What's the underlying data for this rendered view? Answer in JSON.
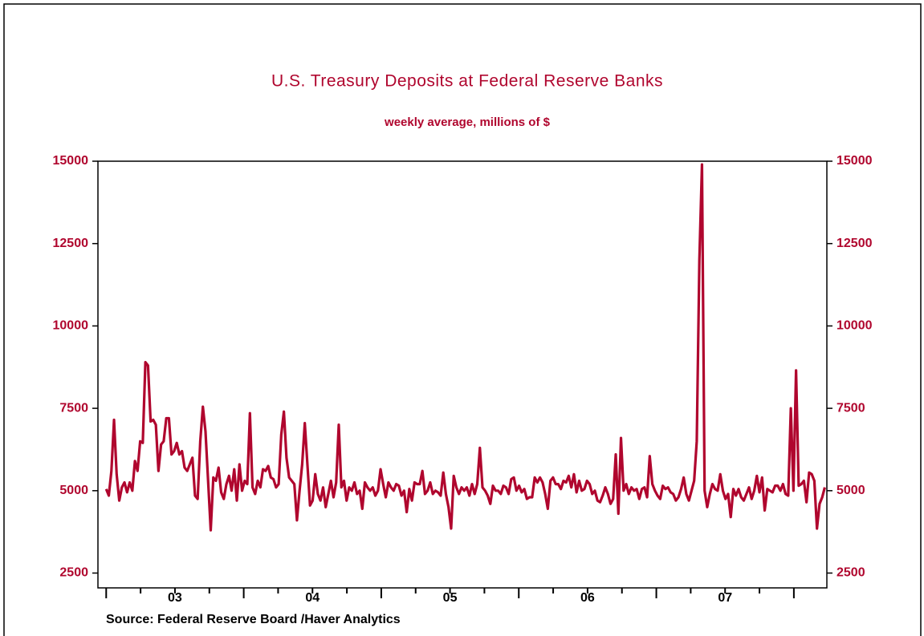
{
  "chart_data": {
    "type": "line",
    "title": "U.S. Treasury Deposits at Federal Reserve Banks",
    "subtitle": "weekly average, millions of $",
    "source": "Source:  Federal Reserve Board /Haver Analytics",
    "color": "#b0062e",
    "xlim": [
      2002.94,
      2008.24
    ],
    "ylim": [
      2050,
      15000
    ],
    "yticks": [
      2500,
      5000,
      7500,
      10000,
      12500,
      15000
    ],
    "xticks": [
      {
        "value": 2003.5,
        "label": "03"
      },
      {
        "value": 2004.5,
        "label": "04"
      },
      {
        "value": 2005.5,
        "label": "05"
      },
      {
        "value": 2006.5,
        "label": "06"
      },
      {
        "value": 2007.5,
        "label": "07"
      }
    ],
    "x": [
      2003,
      2003.019,
      2003.038,
      2003.057,
      2003.076,
      2003.095,
      2003.114,
      2003.133,
      2003.152,
      2003.171,
      2003.19,
      2003.209,
      2003.228,
      2003.247,
      2003.266,
      2003.285,
      2003.304,
      2003.323,
      2003.342,
      2003.361,
      2003.38,
      2003.399,
      2003.418,
      2003.437,
      2003.456,
      2003.475,
      2003.494,
      2003.513,
      2003.532,
      2003.551,
      2003.57,
      2003.589,
      2003.608,
      2003.627,
      2003.646,
      2003.665,
      2003.684,
      2003.703,
      2003.722,
      2003.741,
      2003.76,
      2003.779,
      2003.798,
      2003.817,
      2003.836,
      2003.855,
      2003.874,
      2003.893,
      2003.912,
      2003.931,
      2003.95,
      2003.969,
      2003.988,
      2004.007,
      2004.026,
      2004.045,
      2004.064,
      2004.083,
      2004.102,
      2004.121,
      2004.14,
      2004.159,
      2004.178,
      2004.197,
      2004.216,
      2004.235,
      2004.254,
      2004.273,
      2004.292,
      2004.311,
      2004.33,
      2004.349,
      2004.368,
      2004.387,
      2004.406,
      2004.425,
      2004.444,
      2004.463,
      2004.482,
      2004.501,
      2004.52,
      2004.539,
      2004.558,
      2004.577,
      2004.596,
      2004.615,
      2004.634,
      2004.653,
      2004.672,
      2004.691,
      2004.71,
      2004.729,
      2004.748,
      2004.767,
      2004.786,
      2004.805,
      2004.824,
      2004.843,
      2004.862,
      2004.881,
      2004.9,
      2004.919,
      2004.938,
      2004.957,
      2004.976,
      2004.995,
      2005.014,
      2005.033,
      2005.052,
      2005.071,
      2005.09,
      2005.109,
      2005.128,
      2005.147,
      2005.166,
      2005.185,
      2005.204,
      2005.223,
      2005.242,
      2005.261,
      2005.28,
      2005.299,
      2005.318,
      2005.337,
      2005.356,
      2005.375,
      2005.394,
      2005.413,
      2005.432,
      2005.451,
      2005.47,
      2005.489,
      2005.508,
      2005.527,
      2005.546,
      2005.565,
      2005.584,
      2005.603,
      2005.622,
      2005.641,
      2005.66,
      2005.679,
      2005.698,
      2005.717,
      2005.736,
      2005.755,
      2005.774,
      2005.793,
      2005.812,
      2005.831,
      2005.85,
      2005.869,
      2005.888,
      2005.907,
      2005.926,
      2005.945,
      2005.964,
      2005.983,
      2006.002,
      2006.021,
      2006.04,
      2006.059,
      2006.078,
      2006.097,
      2006.116,
      2006.135,
      2006.154,
      2006.173,
      2006.192,
      2006.211,
      2006.23,
      2006.249,
      2006.268,
      2006.287,
      2006.306,
      2006.325,
      2006.344,
      2006.363,
      2006.382,
      2006.401,
      2006.42,
      2006.439,
      2006.458,
      2006.477,
      2006.496,
      2006.515,
      2006.534,
      2006.553,
      2006.572,
      2006.591,
      2006.61,
      2006.629,
      2006.648,
      2006.667,
      2006.686,
      2006.705,
      2006.724,
      2006.743,
      2006.762,
      2006.781,
      2006.8,
      2006.819,
      2006.838,
      2006.857,
      2006.876,
      2006.895,
      2006.914,
      2006.933,
      2006.952,
      2006.971,
      2006.99,
      2007.009,
      2007.028,
      2007.047,
      2007.066,
      2007.085,
      2007.104,
      2007.123,
      2007.142,
      2007.161,
      2007.18,
      2007.199,
      2007.218,
      2007.237,
      2007.256,
      2007.275,
      2007.294,
      2007.313,
      2007.332,
      2007.351,
      2007.37,
      2007.389,
      2007.408,
      2007.427,
      2007.446,
      2007.465,
      2007.484,
      2007.503,
      2007.522,
      2007.541,
      2007.56,
      2007.579,
      2007.598,
      2007.617,
      2007.636,
      2007.655,
      2007.674,
      2007.693,
      2007.712,
      2007.731,
      2007.75,
      2007.769,
      2007.788,
      2007.807,
      2007.826,
      2007.845,
      2007.864,
      2007.883,
      2007.902,
      2007.921,
      2007.94,
      2007.959,
      2007.978,
      2007.997,
      2008.016,
      2008.035,
      2008.054,
      2008.073,
      2008.092,
      2008.111,
      2008.13,
      2008.149,
      2008.168,
      2008.187,
      2008.206,
      2008.225
    ],
    "values": [
      5050,
      4850,
      5600,
      7150,
      5500,
      4700,
      5100,
      5250,
      4950,
      5250,
      5000,
      5900,
      5600,
      6500,
      6450,
      8900,
      8800,
      7100,
      7150,
      7000,
      5600,
      6400,
      6500,
      7200,
      7200,
      6100,
      6200,
      6450,
      6100,
      6200,
      5700,
      5600,
      5800,
      6000,
      4850,
      4750,
      6500,
      7550,
      6800,
      5300,
      3800,
      5400,
      5300,
      5700,
      4950,
      4750,
      5200,
      5450,
      5000,
      5650,
      4700,
      5800,
      5000,
      5300,
      5200,
      7350,
      5100,
      4900,
      5300,
      5100,
      5650,
      5600,
      5750,
      5400,
      5350,
      5100,
      5200,
      6700,
      7400,
      6000,
      5400,
      5300,
      5200,
      4100,
      5000,
      5800,
      7050,
      5800,
      4550,
      4700,
      5500,
      4900,
      4700,
      5100,
      4500,
      4900,
      5300,
      4800,
      5250,
      7000,
      5100,
      5300,
      4700,
      5100,
      5000,
      5250,
      4900,
      5000,
      4450,
      5250,
      5100,
      5000,
      5100,
      4850,
      5000,
      5650,
      5200,
      4800,
      5250,
      5100,
      5000,
      5200,
      5150,
      4850,
      5000,
      4350,
      5050,
      4700,
      5250,
      5200,
      5200,
      5600,
      4900,
      5000,
      5250,
      4900,
      5000,
      4950,
      4850,
      5550,
      4900,
      4500,
      3850,
      5450,
      5100,
      4900,
      5100,
      5000,
      5100,
      4850,
      5200,
      4900,
      5200,
      6300,
      5100,
      5000,
      4850,
      4600,
      5150,
      5000,
      5000,
      4900,
      5150,
      5100,
      4900,
      5350,
      5400,
      5000,
      5150,
      4950,
      5050,
      4750,
      4800,
      4800,
      5400,
      5250,
      5400,
      5250,
      4900,
      4450,
      5300,
      5400,
      5200,
      5200,
      5050,
      5300,
      5250,
      5450,
      5100,
      5500,
      4950,
      5300,
      5000,
      5050,
      5300,
      5200,
      4900,
      5000,
      4700,
      4650,
      4850,
      5100,
      4900,
      4600,
      4750,
      6100,
      4300,
      6600,
      5000,
      5200,
      4900,
      5100,
      5000,
      5050,
      4750,
      5050,
      5100,
      4800,
      6050,
      5200,
      5000,
      4850,
      4750,
      5150,
      5050,
      5100,
      4950,
      4900,
      4700,
      4800,
      5050,
      5400,
      4900,
      4700,
      5000,
      5300,
      6500,
      12000,
      14900,
      5000,
      4500,
      4900,
      5200,
      5050,
      5000,
      5500,
      5000,
      4750,
      4900,
      4200,
      5050,
      4850,
      5050,
      4800,
      4700,
      4900,
      5100,
      4750,
      5000,
      5450,
      4950,
      5400,
      4400,
      5050,
      5000,
      4950,
      5150,
      5150,
      5000,
      5200,
      4900,
      4850,
      7500,
      5000,
      8650,
      5150,
      5200,
      5300,
      4650,
      5550,
      5500,
      5300,
      3850,
      4600,
      4800,
      5100
    ]
  }
}
